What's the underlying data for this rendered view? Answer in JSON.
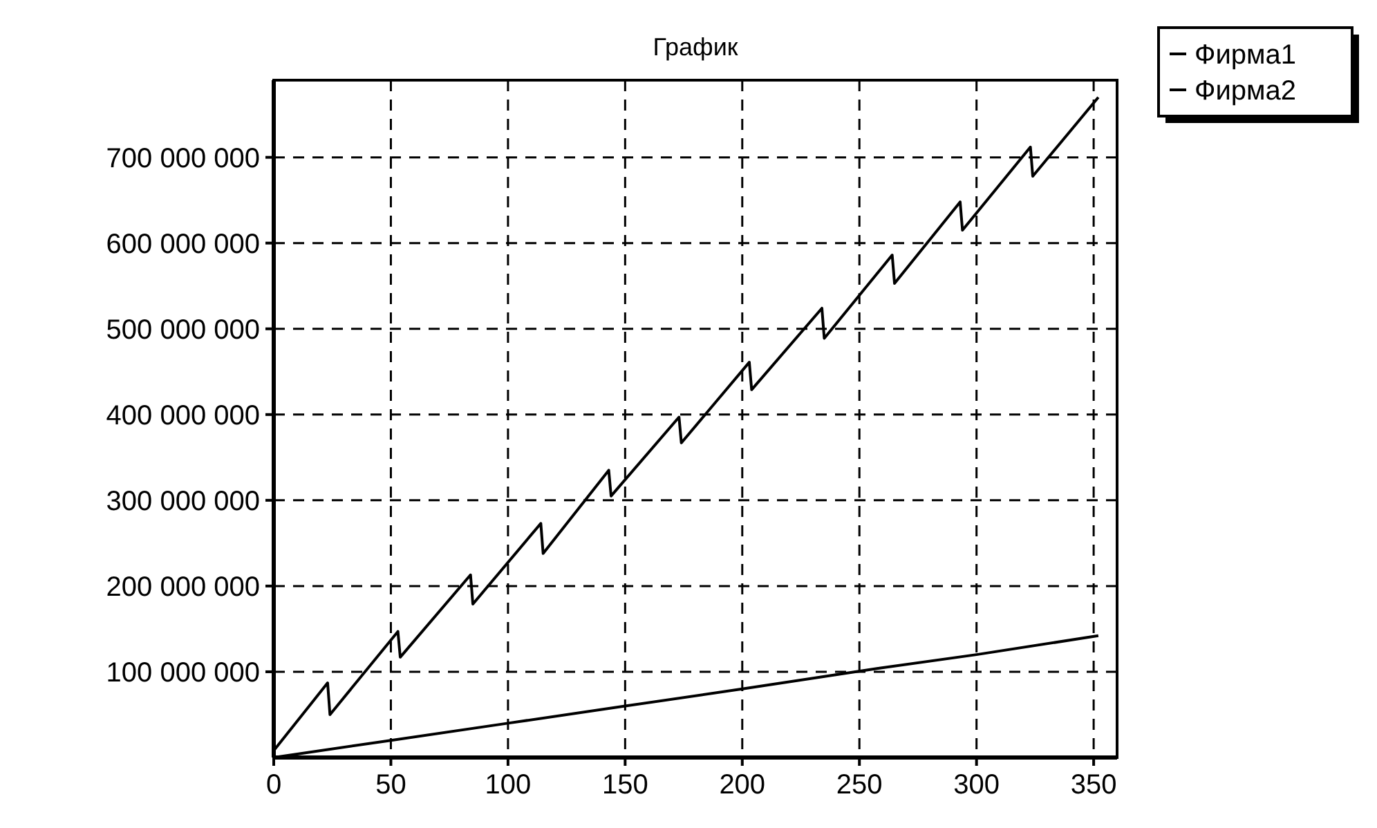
{
  "chart_data": {
    "type": "line",
    "title": "График",
    "xlim": [
      0,
      360
    ],
    "xticks": [
      0,
      50,
      100,
      150,
      200,
      250,
      300,
      350
    ],
    "ylim": [
      0,
      790000000
    ],
    "yticks": [
      {
        "value": 100000000,
        "label": "100 000 000"
      },
      {
        "value": 200000000,
        "label": "200 000 000"
      },
      {
        "value": 300000000,
        "label": "300 000 000"
      },
      {
        "value": 400000000,
        "label": "400 000 000"
      },
      {
        "value": 500000000,
        "label": "500 000 000"
      },
      {
        "value": 600000000,
        "label": "600 000 000"
      },
      {
        "value": 700000000,
        "label": "700 000 000"
      }
    ],
    "grid": true,
    "legend": "top right",
    "marker": "none",
    "line_style": "solid",
    "series": [
      {
        "name": "Фирма1",
        "color": "#000000",
        "x": [
          0,
          23,
          24,
          53,
          54,
          84,
          85,
          114,
          115,
          143,
          144,
          173,
          174,
          203,
          204,
          234,
          235,
          264,
          265,
          293,
          294,
          323,
          324,
          352
        ],
        "values": [
          8000000,
          87000000,
          50000000,
          147000000,
          117000000,
          213000000,
          179000000,
          273000000,
          238000000,
          335000000,
          305000000,
          397000000,
          367000000,
          461000000,
          429000000,
          524000000,
          489000000,
          586000000,
          553000000,
          648000000,
          615000000,
          712000000,
          678000000,
          770000000
        ]
      },
      {
        "name": "Фирма2",
        "color": "#000000",
        "x": [
          0,
          50,
          100,
          150,
          200,
          258,
          300,
          352
        ],
        "values": [
          0,
          20000000,
          40000000,
          60000000,
          80000000,
          104000000,
          120000000,
          142000000
        ]
      }
    ]
  }
}
